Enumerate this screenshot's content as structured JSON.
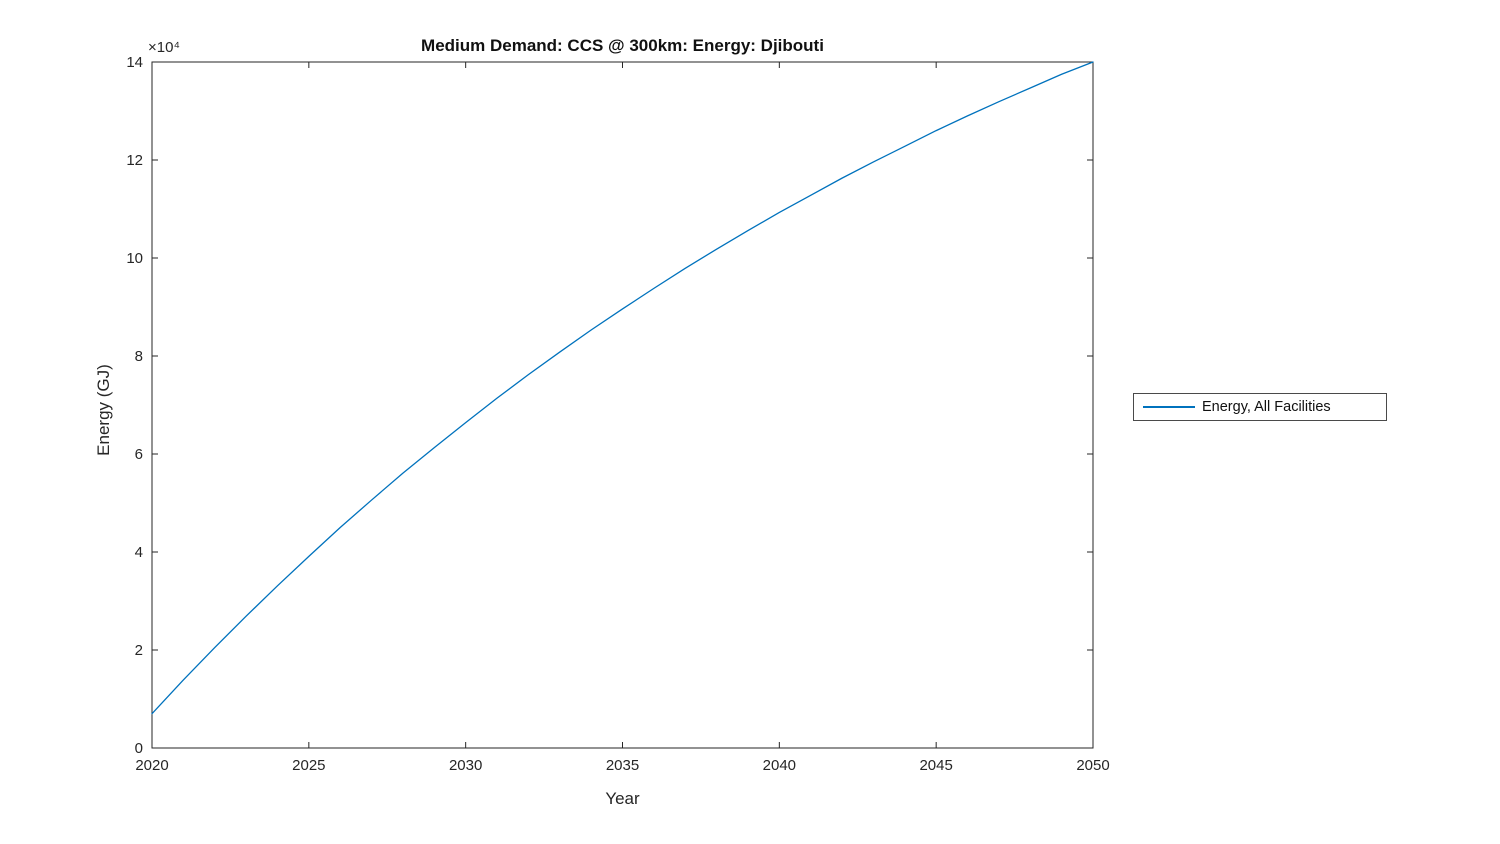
{
  "chart_data": {
    "type": "line",
    "title": "Medium Demand: CCS @ 300km: Energy: Djibouti",
    "xlabel": "Year",
    "ylabel": "Energy (GJ)",
    "y_multiplier": "×10⁴",
    "xlim": [
      2020,
      2050
    ],
    "ylim": [
      0,
      140000
    ],
    "xticks": [
      2020,
      2025,
      2030,
      2035,
      2040,
      2045,
      2050
    ],
    "yticks": [
      0,
      20000,
      40000,
      60000,
      80000,
      100000,
      120000,
      140000
    ],
    "ytick_labels": [
      "0",
      "2",
      "4",
      "6",
      "8",
      "10",
      "12",
      "14"
    ],
    "grid": false,
    "legend_position": "right-outside",
    "x": [
      2020,
      2021,
      2022,
      2023,
      2024,
      2025,
      2026,
      2027,
      2028,
      2029,
      2030,
      2031,
      2032,
      2033,
      2034,
      2035,
      2036,
      2037,
      2038,
      2039,
      2040,
      2041,
      2042,
      2043,
      2044,
      2045,
      2046,
      2047,
      2048,
      2049,
      2050
    ],
    "series": [
      {
        "name": "Energy, All Facilities",
        "color": "#0072BD",
        "values": [
          7000,
          13900,
          20500,
          26900,
          33100,
          39100,
          45000,
          50600,
          56100,
          61300,
          66400,
          71400,
          76200,
          80800,
          85300,
          89600,
          93800,
          97900,
          101800,
          105600,
          109300,
          112800,
          116300,
          119600,
          122800,
          126000,
          129000,
          131900,
          134700,
          137500,
          140000
        ]
      }
    ]
  }
}
